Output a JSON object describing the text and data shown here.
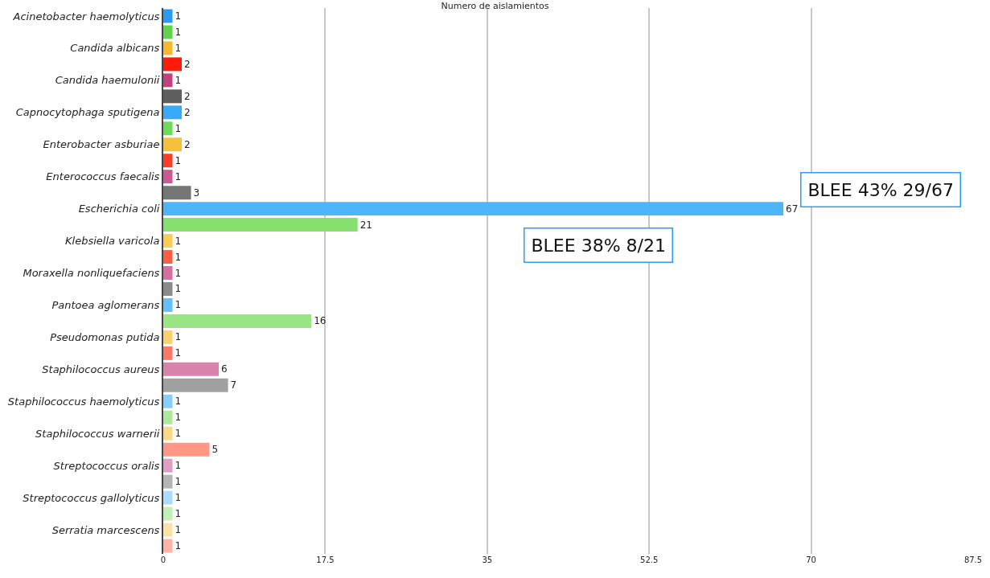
{
  "chart_data": {
    "type": "bar",
    "orientation": "horizontal",
    "title": "Numero de aislamientos",
    "categories": [
      "Acinetobacter haemolyticus",
      null,
      "Candida albicans",
      null,
      "Candida haemulonii",
      null,
      "Capnocytophaga sputigena",
      null,
      "Enterobacter asburiae",
      null,
      "Enterococcus faecalis",
      null,
      "Escherichia coli",
      null,
      "Klebsiella varicola",
      null,
      "Moraxella nonliquefaciens",
      null,
      "Pantoea aglomerans",
      null,
      "Pseudomonas putida",
      null,
      "Staphilococcus aureus",
      null,
      "Staphilococcus haemolyticus",
      null,
      "Staphilococcus warnerii",
      null,
      "Streptococcus oralis",
      null,
      "Streptococcus gallolyticus",
      null,
      "Serratia marcescens",
      null
    ],
    "values": [
      1,
      1,
      1,
      2,
      1,
      2,
      2,
      1,
      2,
      1,
      1,
      3,
      67,
      21,
      1,
      1,
      1,
      1,
      1,
      16,
      1,
      1,
      6,
      7,
      1,
      1,
      1,
      5,
      1,
      1,
      1,
      1,
      1,
      1
    ],
    "colors": [
      "#2b9af3",
      "#5fd34a",
      "#f5b82e",
      "#ff1a0a",
      "#c2427e",
      "#5e5e5e",
      "#38aaf8",
      "#6bdc58",
      "#f5c03a",
      "#ff3d26",
      "#cc5a92",
      "#767676",
      "#4db5fa",
      "#86e06e",
      "#f8cd57",
      "#ff5e44",
      "#d66e9f",
      "#8a8a8a",
      "#62c0fb",
      "#9ae684",
      "#f9d26b",
      "#ff7764",
      "#d982ac",
      "#a0a0a0",
      "#86cffc",
      "#ace99a",
      "#f9da85",
      "#ff9787",
      "#e09fc2",
      "#b4b4b4",
      "#a9dcfd",
      "#c2efb4",
      "#fbe3a6",
      "#ffb2a6"
    ],
    "data_labels": true,
    "xlim": [
      0,
      87.5
    ],
    "xticks": [
      0,
      17.5,
      35,
      52.5,
      70,
      87.5
    ],
    "grid": "x",
    "annotations": [
      "BLEE 43% 29/67",
      "BLEE 38% 8/21"
    ]
  }
}
